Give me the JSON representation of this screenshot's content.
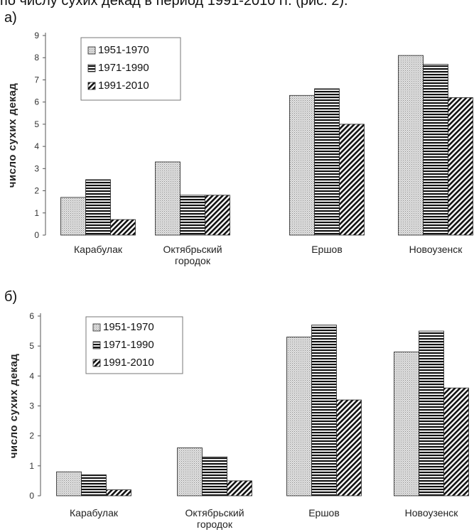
{
  "caption_fragment": "по числу сухих декад в период 1991-2010 гг. (рис. 2).",
  "chart_data": [
    {
      "type": "bar",
      "panel": "а)",
      "categories": [
        [
          "Карабулак"
        ],
        [
          "Октябрьский",
          "городок"
        ],
        [
          "Ершов"
        ],
        [
          "Новоузенск"
        ]
      ],
      "series": [
        {
          "name": "1951-1970",
          "values": [
            1.7,
            3.3,
            6.3,
            8.1
          ]
        },
        {
          "name": "1971-1990",
          "values": [
            2.5,
            1.8,
            6.6,
            7.7
          ]
        },
        {
          "name": "1991-2010",
          "values": [
            0.7,
            1.8,
            5.0,
            6.2
          ]
        }
      ],
      "ylabel": "число сухих декад",
      "ylim": [
        0,
        9
      ],
      "yticks": [
        0,
        1,
        2,
        3,
        4,
        5,
        6,
        7,
        8,
        9
      ],
      "grid": false,
      "legend": "top-left"
    },
    {
      "type": "bar",
      "panel": "б)",
      "categories": [
        [
          "Карабулак"
        ],
        [
          "Октябрьский",
          "городок"
        ],
        [
          "Ершов"
        ],
        [
          "Новоузенск"
        ]
      ],
      "series": [
        {
          "name": "1951-1970",
          "values": [
            0.8,
            1.6,
            5.3,
            4.8
          ]
        },
        {
          "name": "1971-1990",
          "values": [
            0.7,
            1.3,
            5.7,
            5.5
          ]
        },
        {
          "name": "1991-2010",
          "values": [
            0.2,
            0.5,
            3.2,
            3.6
          ]
        }
      ],
      "ylabel": "число сухих декад",
      "ylim": [
        0,
        6
      ],
      "yticks": [
        0,
        1,
        2,
        3,
        4,
        5,
        6
      ],
      "grid": false,
      "legend": "top-left"
    }
  ]
}
